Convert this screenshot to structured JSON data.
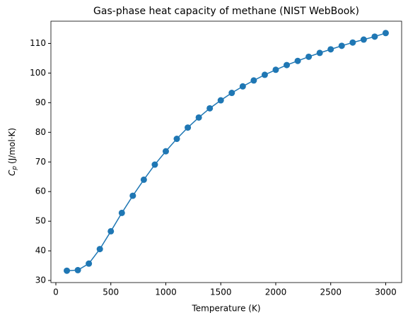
{
  "chart_data": {
    "type": "line",
    "title": "Gas-phase heat capacity of methane (NIST WebBook)",
    "xlabel": "Temperature (K)",
    "ylabel": {
      "symbol": "C",
      "subscript": "p",
      "unit": "(J/mol·K)"
    },
    "x": [
      100,
      200,
      300,
      400,
      500,
      600,
      700,
      800,
      900,
      1000,
      1100,
      1200,
      1300,
      1400,
      1500,
      1600,
      1700,
      1800,
      1900,
      2000,
      2100,
      2200,
      2300,
      2400,
      2500,
      2600,
      2700,
      2800,
      2900,
      3000
    ],
    "series": [
      {
        "color": "#1f77b4",
        "values": [
          33.3,
          33.5,
          35.7,
          40.6,
          46.6,
          52.8,
          58.6,
          64.0,
          69.1,
          73.6,
          77.8,
          81.6,
          85.0,
          88.1,
          90.8,
          93.3,
          95.5,
          97.5,
          99.4,
          101.1,
          102.7,
          104.1,
          105.5,
          106.8,
          108.0,
          109.2,
          110.3,
          111.3,
          112.3,
          113.5
        ]
      }
    ],
    "xlim": [
      -45,
      3145
    ],
    "xticks": [
      0,
      500,
      1000,
      1500,
      2000,
      2500,
      3000
    ],
    "ylim": [
      29.3,
      117.5
    ],
    "yticks": [
      30,
      40,
      50,
      60,
      70,
      80,
      90,
      100,
      110
    ],
    "grid": false
  }
}
